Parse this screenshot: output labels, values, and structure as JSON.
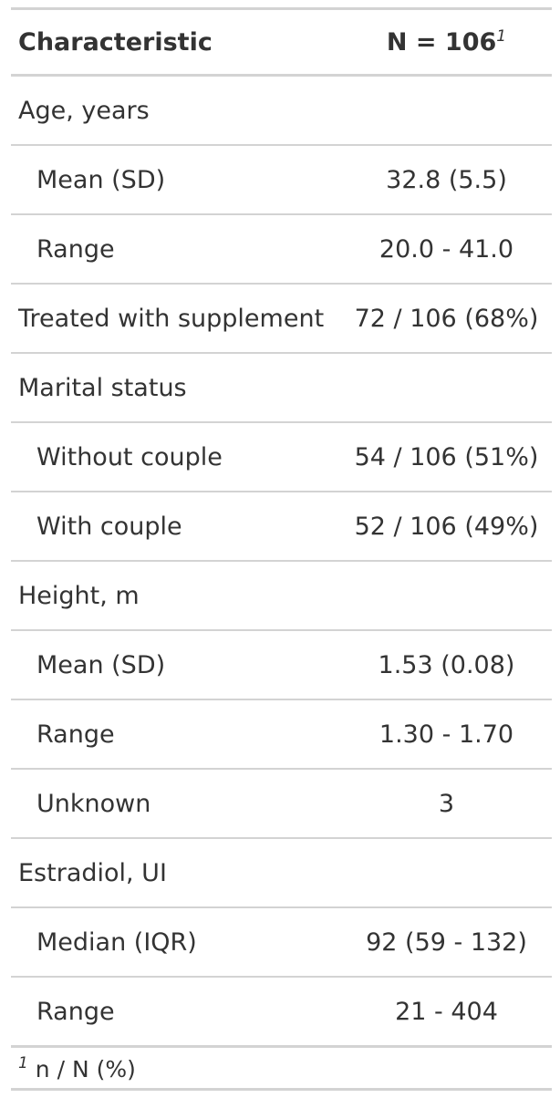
{
  "header": {
    "characteristic": "Characteristic",
    "n_label": "N = 106",
    "n_footnote_mark": "1"
  },
  "rows": [
    {
      "label": "Age, years",
      "value": ""
    },
    {
      "label": "Mean (SD)",
      "value": "32.8 (5.5)"
    },
    {
      "label": "Range",
      "value": "20.0 - 41.0"
    },
    {
      "label": "Treated with supplement",
      "value": "72 / 106 (68%)"
    },
    {
      "label": "Marital status",
      "value": ""
    },
    {
      "label": "Without couple",
      "value": "54 / 106 (51%)"
    },
    {
      "label": "With couple",
      "value": "52 / 106 (49%)"
    },
    {
      "label": "Height, m",
      "value": ""
    },
    {
      "label": "Mean (SD)",
      "value": "1.53 (0.08)"
    },
    {
      "label": "Range",
      "value": "1.30 - 1.70"
    },
    {
      "label": "Unknown",
      "value": "3"
    },
    {
      "label": "Estradiol, UI",
      "value": ""
    },
    {
      "label": "Median (IQR)",
      "value": "92 (59 - 132)"
    },
    {
      "label": "Range",
      "value": "21 - 404"
    }
  ],
  "footnote": {
    "mark": "1",
    "text": "n / N (%)"
  }
}
